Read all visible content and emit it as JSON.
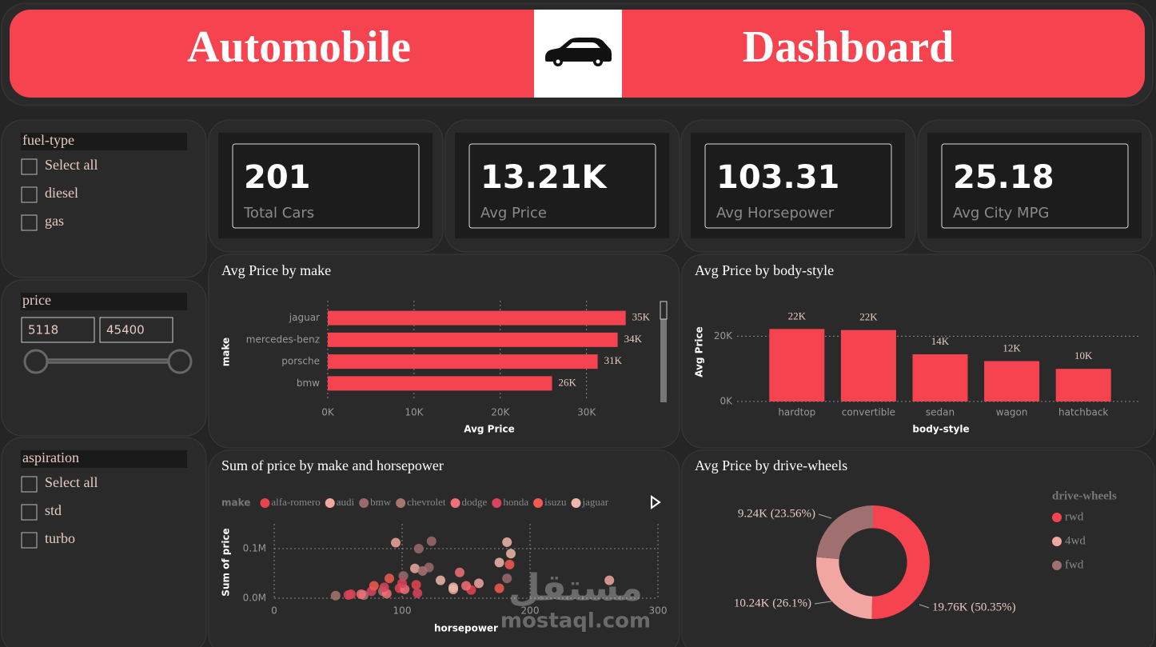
{
  "header": {
    "left_title": "Automobile",
    "right_title": "Dashboard"
  },
  "slicers": [
    {
      "title": "fuel-type",
      "options": [
        "Select all",
        "diesel",
        "gas"
      ]
    },
    {
      "title": "price",
      "min": "5118",
      "max": "45400"
    },
    {
      "title": "aspiration",
      "options": [
        "Select all",
        "std",
        "turbo"
      ]
    }
  ],
  "cards": [
    {
      "value": "201",
      "label": "Total Cars"
    },
    {
      "value": "13.21K",
      "label": "Avg Price"
    },
    {
      "value": "103.31",
      "label": "Avg Horsepower"
    },
    {
      "value": "25.18",
      "label": "Avg City MPG"
    }
  ],
  "watermark": {
    "logo": "مستقل",
    "text": "mostaql.com"
  },
  "chart_data": [
    {
      "type": "bar",
      "orientation": "horizontal",
      "title": "Avg Price by make",
      "categories": [
        "jaguar",
        "mercedes-benz",
        "porsche",
        "bmw"
      ],
      "values": [
        34540,
        33610,
        31290,
        26000
      ],
      "value_labels": [
        "35K",
        "34K",
        "31K",
        "26K"
      ],
      "color": "#f5444f",
      "x_label": "Avg Price",
      "y_label": "make",
      "xlim": [
        0,
        38000
      ],
      "xticks": [
        {
          "value": 0,
          "label": "0K"
        },
        {
          "value": 10000,
          "label": "10K"
        },
        {
          "value": 20000,
          "label": "20K"
        },
        {
          "value": 30000,
          "label": "30K"
        }
      ],
      "grid": true
    },
    {
      "type": "bar",
      "orientation": "vertical",
      "title": "Avg Price by body-style",
      "categories": [
        "hardtop",
        "convertible",
        "sedan",
        "wagon",
        "hatchback"
      ],
      "values": [
        22210,
        21890,
        14460,
        12370,
        10000
      ],
      "value_labels": [
        "22K",
        "22K",
        "14K",
        "12K",
        "10K"
      ],
      "color": "#f5444f",
      "x_label": "body-style",
      "y_label": "Avg Price",
      "ylim": [
        0,
        25000
      ],
      "yticks": [
        {
          "value": 0,
          "label": "0K"
        },
        {
          "value": 20000,
          "label": "20K"
        }
      ],
      "grid": true
    },
    {
      "type": "scatter",
      "title": "Sum of price by make and horsepower",
      "x_label": "horsepower",
      "y_label": "Sum of price",
      "legend_title": "make",
      "xlim": [
        0,
        300
      ],
      "xticks": [
        0,
        100,
        200,
        300
      ],
      "ylim": [
        0,
        150000
      ],
      "yticks": [
        {
          "value": 0,
          "label": "0.0M"
        },
        {
          "value": 100000,
          "label": "0.1M"
        }
      ],
      "grid": true,
      "series": [
        {
          "name": "alfa-romero",
          "color": "#e8434f",
          "x": [
            111,
            154,
            60,
            98
          ],
          "values": [
            27000,
            16500,
            8000,
            20000
          ]
        },
        {
          "name": "audi",
          "color": "#f0a8a0",
          "x": [
            95,
            110,
            160,
            140,
            262
          ],
          "values": [
            112000,
            60000,
            30000,
            17700,
            36000
          ]
        },
        {
          "name": "bmw",
          "color": "#9b6a6a",
          "x": [
            123,
            113,
            101,
            121,
            182
          ],
          "values": [
            115000,
            100000,
            45000,
            62000,
            40000
          ]
        },
        {
          "name": "chevrolet",
          "color": "#a7766e",
          "x": [
            48,
            70,
            85,
            116
          ],
          "values": [
            5200,
            6300,
            14000,
            55000
          ]
        },
        {
          "name": "dodge",
          "color": "#f46f77",
          "x": [
            68,
            88,
            102,
            145,
            150
          ],
          "values": [
            8000,
            9000,
            18000,
            52000,
            25000
          ]
        },
        {
          "name": "honda",
          "color": "#d9435e",
          "x": [
            58,
            76,
            86,
            100,
            112
          ],
          "values": [
            6500,
            14000,
            22000,
            30000,
            10000
          ]
        },
        {
          "name": "isuzu",
          "color": "#f55a4e",
          "x": [
            78,
            90,
            184,
            176
          ],
          "values": [
            25000,
            40000,
            68000,
            20000
          ]
        },
        {
          "name": "jaguar",
          "color": "#f0b8a8",
          "x": [
            182,
            185,
            176,
            140,
            130
          ],
          "values": [
            113000,
            90000,
            72000,
            22000,
            36000
          ]
        }
      ]
    },
    {
      "type": "pie",
      "title": "Avg Price by drive-wheels",
      "legend_title": "drive-wheels",
      "categories": [
        "rwd",
        "4wd",
        "fwd"
      ],
      "values": [
        19760,
        10240,
        9240
      ],
      "value_labels": [
        "19.76K (50.35%)",
        "10.24K (26.1%)",
        "9.24K (23.56%)"
      ],
      "colors": [
        "#f5444f",
        "#f1a6a2",
        "#a06f70"
      ],
      "hole": 0.6
    }
  ]
}
